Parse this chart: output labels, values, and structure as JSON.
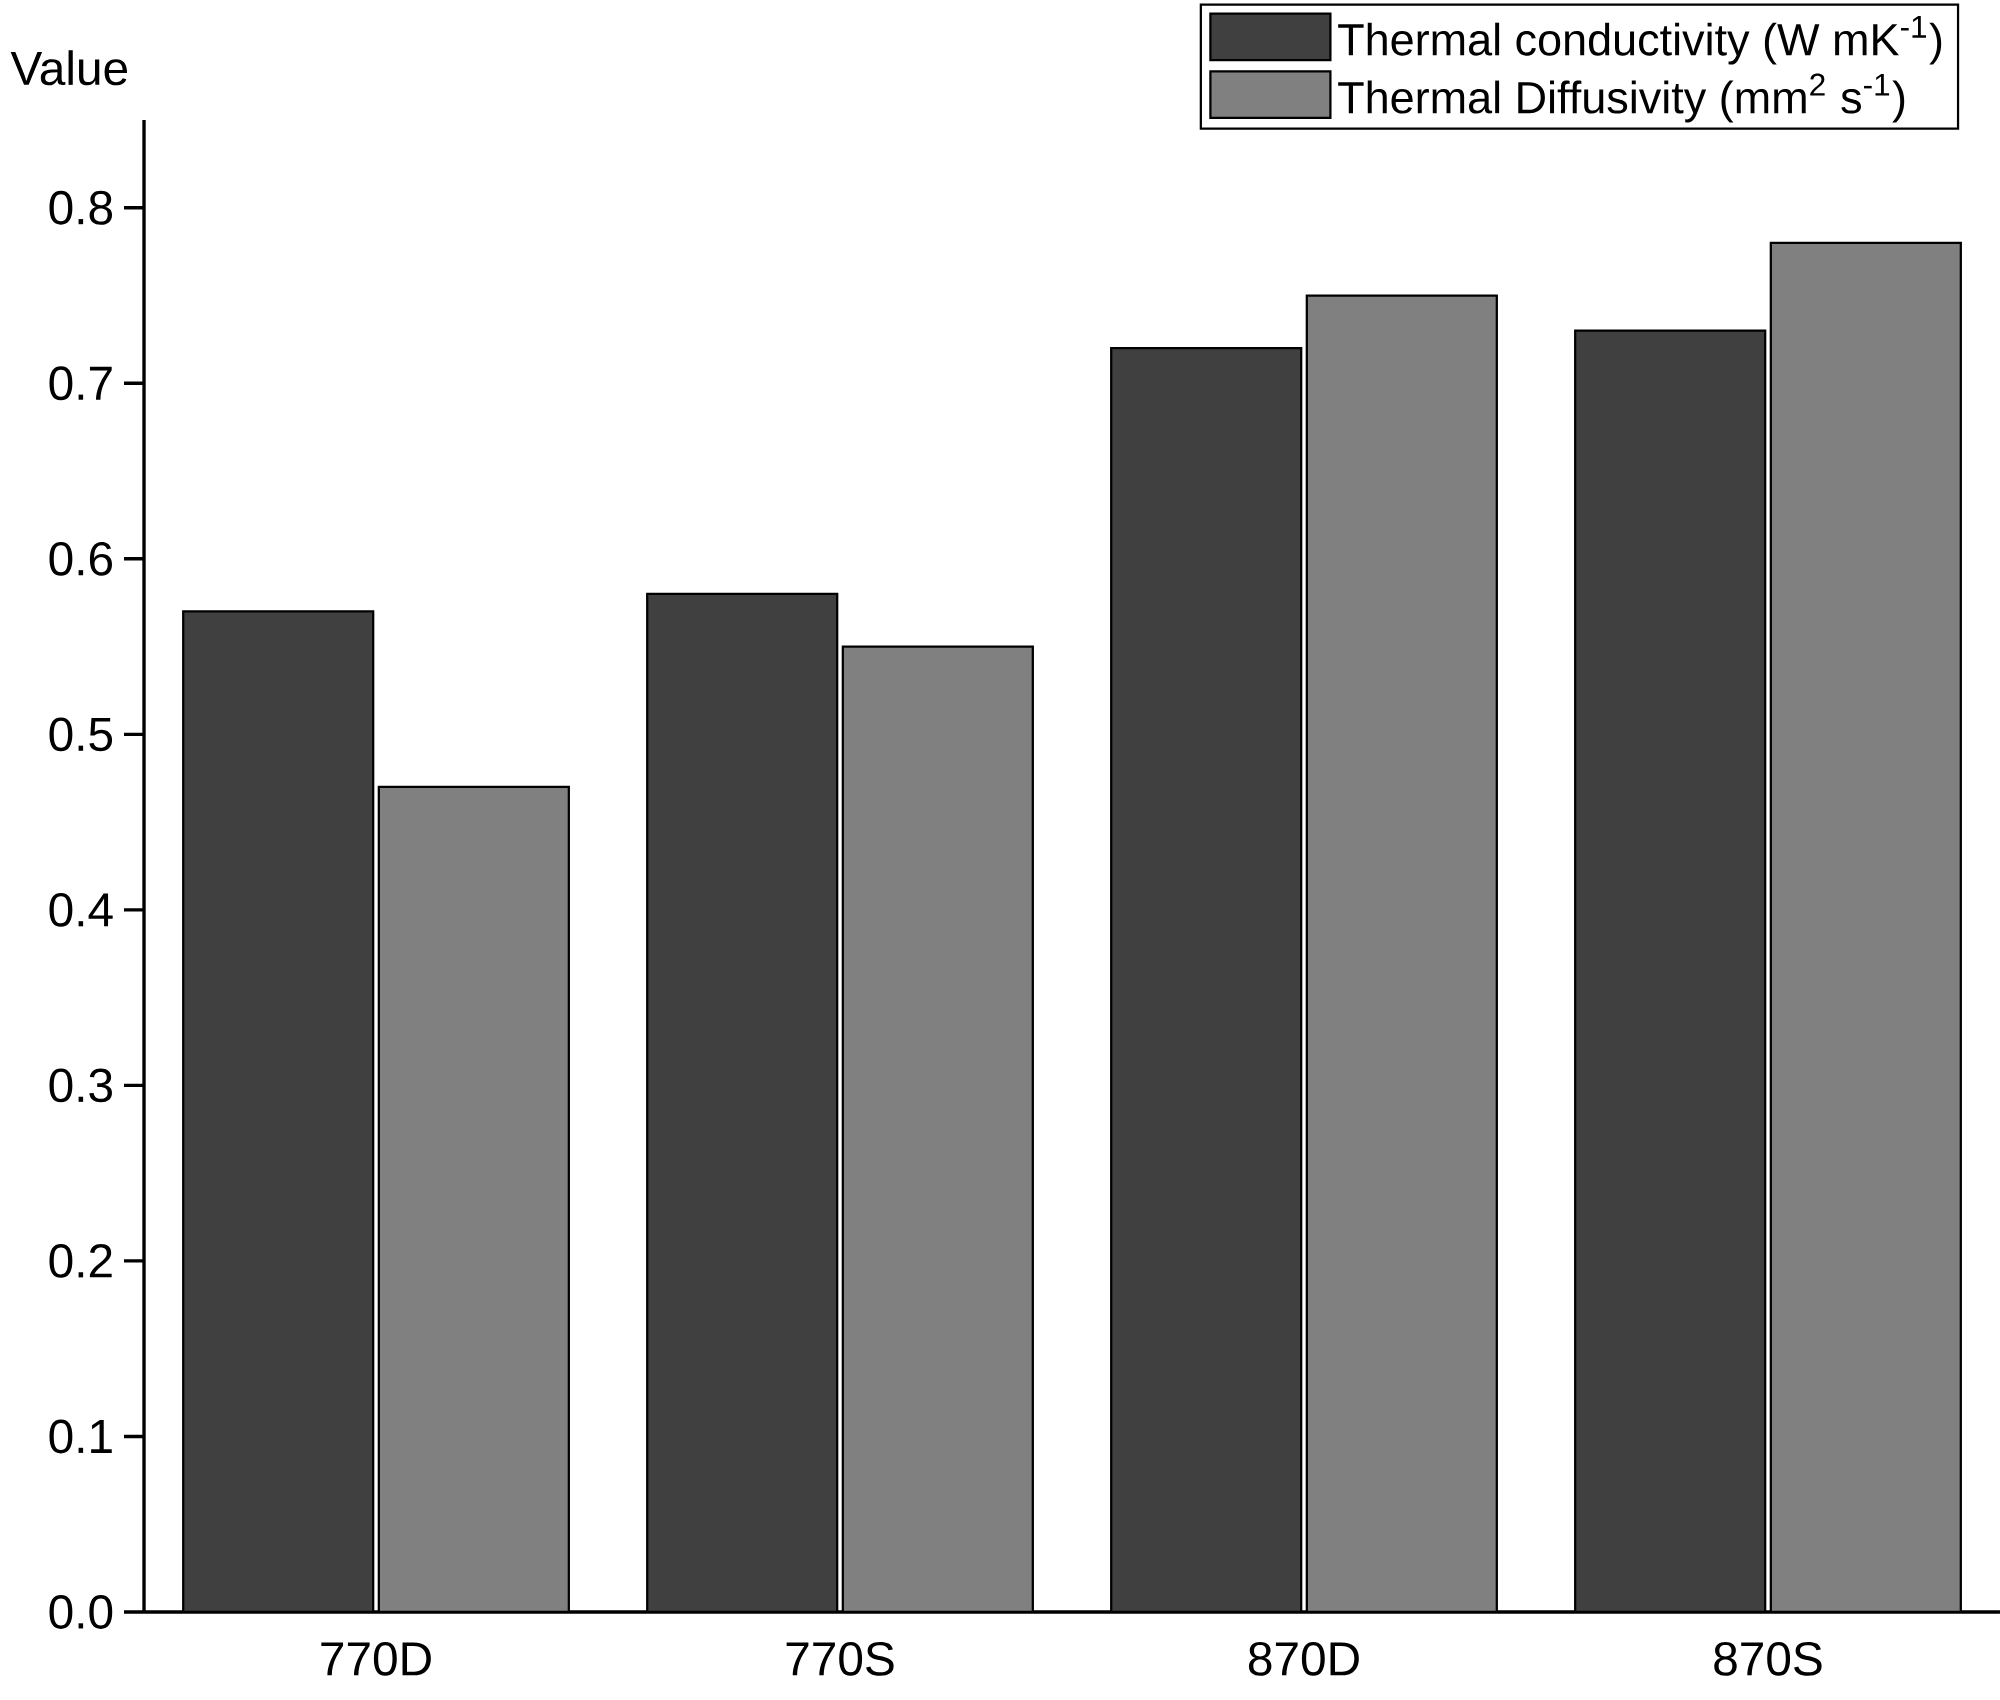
{
  "chart_data": {
    "type": "bar",
    "ylabel": "Value",
    "categories": [
      "770D",
      "770S",
      "870D",
      "870S"
    ],
    "series": [
      {
        "name": "Thermal conductivity (W mK$^{-1}$)",
        "color": "#404040",
        "values": [
          0.57,
          0.58,
          0.72,
          0.73
        ]
      },
      {
        "name": "Thermal Diffusivity (mm$^{2}$ s$^{-1}$)",
        "color": "#808080",
        "values": [
          0.47,
          0.55,
          0.75,
          0.78
        ]
      }
    ],
    "ylim": [
      0,
      0.85
    ],
    "yticks": [
      "0.0",
      0.1,
      0.2,
      0.3,
      0.4,
      0.5,
      0.6,
      0.7,
      0.8
    ],
    "legend": "top right"
  }
}
